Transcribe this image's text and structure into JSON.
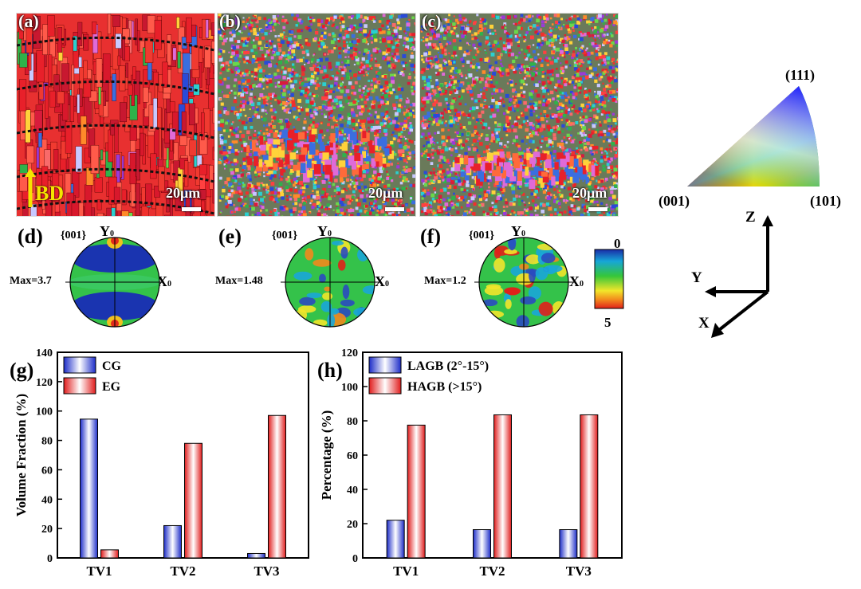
{
  "maps": [
    {
      "label": "(a)",
      "scale": "20μm",
      "bd": "BD"
    },
    {
      "label": "(b)",
      "scale": "20μm"
    },
    {
      "label": "(c)",
      "scale": "20μm"
    }
  ],
  "pole_figures": [
    {
      "label": "(d)",
      "plane": "{001}",
      "y": "Y",
      "x": "X",
      "sub": "0",
      "max": "Max=3.7"
    },
    {
      "label": "(e)",
      "plane": "{001}",
      "y": "Y",
      "x": "X",
      "sub": "0",
      "max": "Max=1.48"
    },
    {
      "label": "(f)",
      "plane": "{001}",
      "y": "Y",
      "x": "X",
      "sub": "0",
      "max": "Max=1.2"
    }
  ],
  "colorbar": {
    "top": "0",
    "bottom": "5"
  },
  "ipf_key": {
    "top": "(111)",
    "left": "(001)",
    "right": "(101)"
  },
  "axes_triad": {
    "z": "Z",
    "y": "Y",
    "x": "X"
  },
  "colors": {
    "blue_series": "#2b3bd6",
    "red_series": "#e23a3a"
  },
  "chart_data": [
    {
      "type": "bar",
      "panel": "(g)",
      "categories": [
        "TV1",
        "TV2",
        "TV3"
      ],
      "series": [
        {
          "name": "CG",
          "values": [
            94.5,
            22,
            3
          ]
        },
        {
          "name": "EG",
          "values": [
            5.5,
            78,
            97
          ]
        }
      ],
      "ylabel": "Volume Fraction (%)",
      "ylim": [
        0,
        140
      ],
      "yticks": [
        0,
        20,
        40,
        60,
        80,
        100,
        120,
        140
      ],
      "legend": "top-left"
    },
    {
      "type": "bar",
      "panel": "(h)",
      "categories": [
        "TV1",
        "TV2",
        "TV3"
      ],
      "series": [
        {
          "name": "LAGB (2°-15°)",
          "values": [
            22,
            16.5,
            16.5
          ]
        },
        {
          "name": "HAGB (>15°)",
          "values": [
            77.5,
            83.5,
            83.5
          ]
        }
      ],
      "ylabel": "Percentage (%)",
      "ylim": [
        0,
        120
      ],
      "yticks": [
        0,
        20,
        40,
        60,
        80,
        100,
        120
      ],
      "legend": "top-left"
    }
  ]
}
